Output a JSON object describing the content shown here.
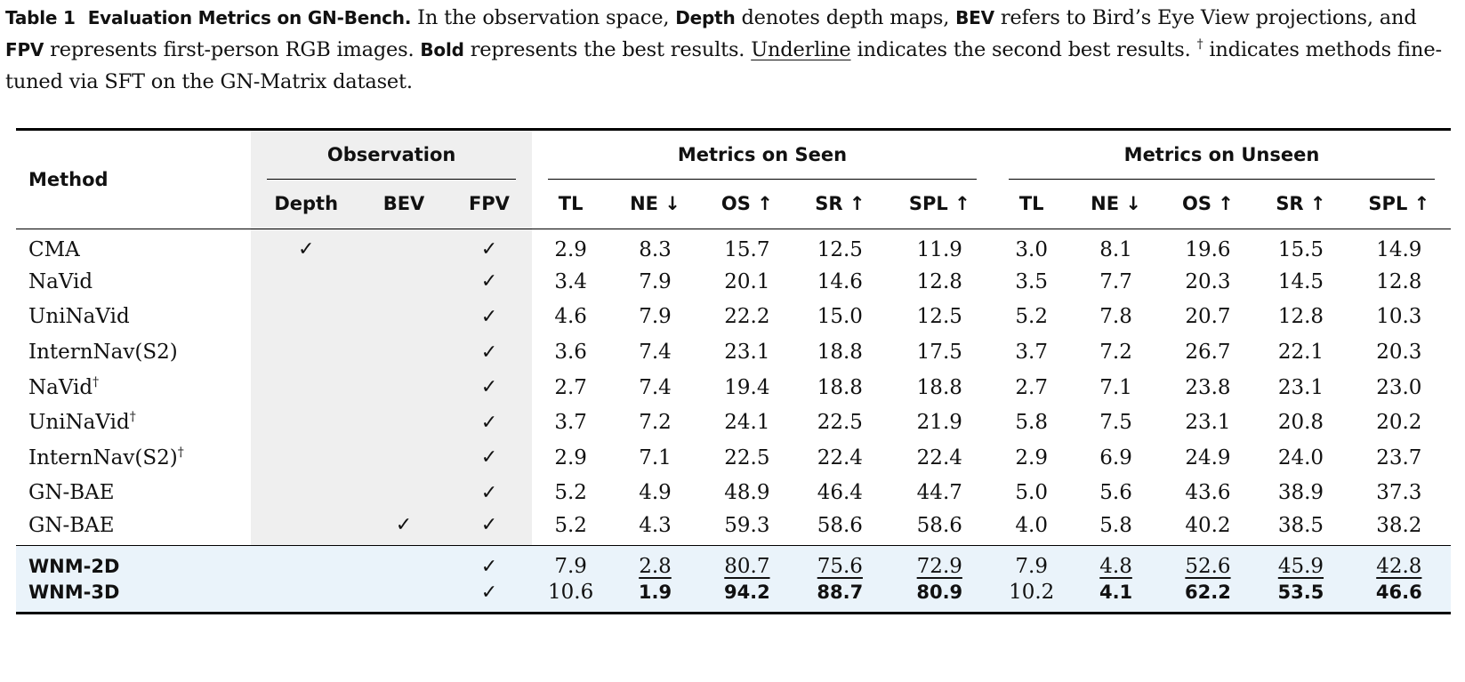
{
  "caption": {
    "label": "Table 1",
    "title": "Evaluation Metrics on GN-Bench.",
    "part1": " In the observation space, ",
    "depth": "Depth",
    "part2": " denotes depth maps, ",
    "bev": "BEV",
    "part3": " refers to Bird’s Eye View projections, and ",
    "fpv": "FPV",
    "part4": " represents first-person RGB images. ",
    "bold_word": "Bold",
    "part5": " represents the best results. ",
    "underline_word": "Underline",
    "part6": " indicates the second best results. ",
    "dagger": "†",
    "part7": " indicates methods fine-tuned via SFT on the GN-Matrix dataset."
  },
  "header": {
    "method": "Method",
    "observation": "Observation",
    "seen": "Metrics on Seen",
    "unseen": "Metrics on Unseen",
    "obs_cols": [
      "Depth",
      "BEV",
      "FPV"
    ],
    "metric_cols": [
      "TL",
      "NE ↓",
      "OS ↑",
      "SR ↑",
      "SPL ↑"
    ]
  },
  "check": "✓",
  "rows": [
    {
      "method": "CMA",
      "dagger": "",
      "depth": "✓",
      "bev": "",
      "fpv": "✓",
      "seen": [
        "2.9",
        "8.3",
        "15.7",
        "12.5",
        "11.9"
      ],
      "unseen": [
        "3.0",
        "8.1",
        "19.6",
        "15.5",
        "14.9"
      ]
    },
    {
      "method": "NaVid",
      "dagger": "",
      "depth": "",
      "bev": "",
      "fpv": "✓",
      "seen": [
        "3.4",
        "7.9",
        "20.1",
        "14.6",
        "12.8"
      ],
      "unseen": [
        "3.5",
        "7.7",
        "20.3",
        "14.5",
        "12.8"
      ]
    },
    {
      "method": "UniNaVid",
      "dagger": "",
      "depth": "",
      "bev": "",
      "fpv": "✓",
      "seen": [
        "4.6",
        "7.9",
        "22.2",
        "15.0",
        "12.5"
      ],
      "unseen": [
        "5.2",
        "7.8",
        "20.7",
        "12.8",
        "10.3"
      ]
    },
    {
      "method": "InternNav(S2)",
      "dagger": "",
      "depth": "",
      "bev": "",
      "fpv": "✓",
      "seen": [
        "3.6",
        "7.4",
        "23.1",
        "18.8",
        "17.5"
      ],
      "unseen": [
        "3.7",
        "7.2",
        "26.7",
        "22.1",
        "20.3"
      ]
    },
    {
      "method": "NaVid",
      "dagger": "†",
      "depth": "",
      "bev": "",
      "fpv": "✓",
      "seen": [
        "2.7",
        "7.4",
        "19.4",
        "18.8",
        "18.8"
      ],
      "unseen": [
        "2.7",
        "7.1",
        "23.8",
        "23.1",
        "23.0"
      ]
    },
    {
      "method": "UniNaVid",
      "dagger": "†",
      "depth": "",
      "bev": "",
      "fpv": "✓",
      "seen": [
        "3.7",
        "7.2",
        "24.1",
        "22.5",
        "21.9"
      ],
      "unseen": [
        "5.8",
        "7.5",
        "23.1",
        "20.8",
        "20.2"
      ]
    },
    {
      "method": "InternNav(S2)",
      "dagger": "†",
      "depth": "",
      "bev": "",
      "fpv": "✓",
      "seen": [
        "2.9",
        "7.1",
        "22.5",
        "22.4",
        "22.4"
      ],
      "unseen": [
        "2.9",
        "6.9",
        "24.9",
        "24.0",
        "23.7"
      ]
    },
    {
      "method": "GN-BAE",
      "dagger": "",
      "depth": "",
      "bev": "",
      "fpv": "✓",
      "seen": [
        "5.2",
        "4.9",
        "48.9",
        "46.4",
        "44.7"
      ],
      "unseen": [
        "5.0",
        "5.6",
        "43.6",
        "38.9",
        "37.3"
      ]
    },
    {
      "method": "GN-BAE",
      "dagger": "",
      "depth": "",
      "bev": "✓",
      "fpv": "✓",
      "seen": [
        "5.2",
        "4.3",
        "59.3",
        "58.6",
        "58.6"
      ],
      "unseen": [
        "4.0",
        "5.8",
        "40.2",
        "38.5",
        "38.2"
      ]
    }
  ],
  "wnm_rows": [
    {
      "method": "WNM-2D",
      "fpv": "✓",
      "seen": [
        "7.9",
        "2.8",
        "80.7",
        "75.6",
        "72.9"
      ],
      "unseen": [
        "7.9",
        "4.8",
        "52.6",
        "45.9",
        "42.8"
      ],
      "style": "underline"
    },
    {
      "method": "WNM-3D",
      "fpv": "✓",
      "seen": [
        "10.6",
        "1.9",
        "94.2",
        "88.7",
        "80.9"
      ],
      "unseen": [
        "10.2",
        "4.1",
        "62.2",
        "53.5",
        "46.6"
      ],
      "style": "bold"
    }
  ]
}
